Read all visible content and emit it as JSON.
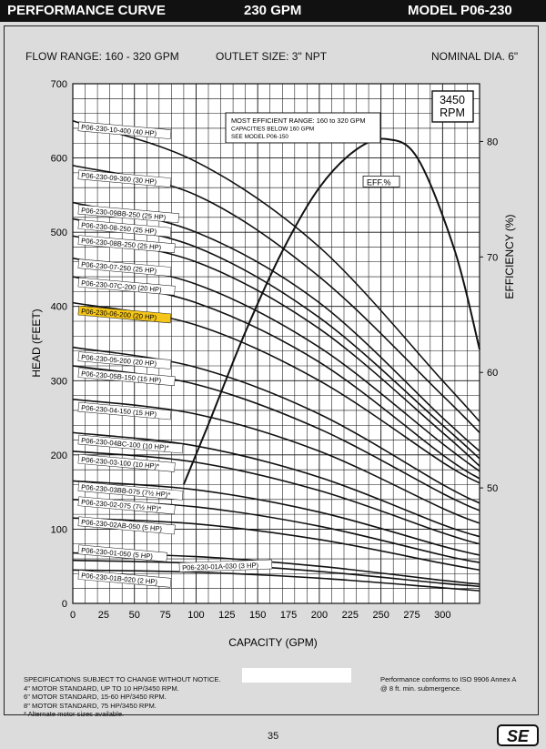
{
  "header": {
    "left": "PERFORMANCE CURVE",
    "center": "230 GPM",
    "right": "MODEL  P06-230"
  },
  "specs": {
    "flow_range": "FLOW RANGE: 160 - 320 GPM",
    "outlet": "OUTLET SIZE: 3\" NPT",
    "nominal": "NOMINAL DIA. 6\""
  },
  "footer": {
    "left": "SPECIFICATIONS SUBJECT TO CHANGE WITHOUT NOTICE.\n4\" MOTOR STANDARD, UP TO 10 HP/3450 RPM.\n6\" MOTOR STANDARD, 15-60 HP/3450 RPM.\n8\" MOTOR STANDARD, 75 HP/3450 RPM.\n* Alternate motor sizes available.",
    "right": "Performance conforms to ISO 9906 Annex A\n@ 8 ft. min. submergence.",
    "page": "35",
    "logo": "SE"
  },
  "chart_data": {
    "type": "line",
    "xlabel": "CAPACITY (GPM)",
    "ylabel": "HEAD (FEET)",
    "y2label": "EFFICIENCY (%)",
    "xlim": [
      0,
      330
    ],
    "ylim": [
      0,
      700
    ],
    "y2lim": [
      40,
      85
    ],
    "xticks": [
      0,
      25,
      50,
      75,
      100,
      125,
      150,
      175,
      200,
      225,
      250,
      275,
      300
    ],
    "yticks": [
      0,
      100,
      200,
      300,
      400,
      500,
      600,
      700
    ],
    "y2ticks": [
      50,
      60,
      70,
      80
    ],
    "grid": true,
    "rpm": "3450\nRPM",
    "note": [
      "MOST EFFICIENT RANGE: 160 to 320 GPM",
      "CAPACITIES BELOW 160 GPM",
      "SEE  MODEL P06-150"
    ],
    "highlight": "P06-230-06-200 (20 HP)",
    "efficiency": {
      "name": "EFF.%",
      "x": [
        90,
        110,
        140,
        170,
        200,
        230,
        255,
        280,
        310,
        330
      ],
      "y": [
        50.3,
        55.5,
        63.5,
        70.5,
        76,
        79.3,
        80.2,
        78.5,
        70.5,
        62
      ]
    },
    "series": [
      {
        "name": "P06-230-10-400 (40 HP)",
        "x": [
          0,
          100,
          200,
          300,
          330
        ],
        "y": [
          650,
          595,
          480,
          300,
          245
        ],
        "label_y": 640
      },
      {
        "name": "P06-230-09-300 (30 HP)",
        "x": [
          0,
          100,
          200,
          300,
          330
        ],
        "y": [
          590,
          550,
          440,
          280,
          230
        ],
        "label_y": 575
      },
      {
        "name": "P06-230-09BB-250 (25 HP)",
        "x": [
          0,
          100,
          200,
          300,
          330
        ],
        "y": [
          540,
          500,
          405,
          250,
          205
        ],
        "label_y": 528
      },
      {
        "name": "P06-230-08-250 (25 HP)",
        "x": [
          0,
          100,
          200,
          300,
          330
        ],
        "y": [
          518,
          480,
          385,
          240,
          195
        ],
        "label_y": 508
      },
      {
        "name": "P06-230-08B-250 (25 HP)",
        "x": [
          0,
          100,
          200,
          300,
          330
        ],
        "y": [
          495,
          460,
          370,
          230,
          185
        ],
        "label_y": 487
      },
      {
        "name": "P06-230-07-250 (25 HP)",
        "x": [
          0,
          100,
          200,
          300,
          330
        ],
        "y": [
          465,
          430,
          345,
          215,
          178
        ],
        "label_y": 455
      },
      {
        "name": "P06-230-07C-200 (20 HP)",
        "x": [
          0,
          100,
          200,
          300,
          330
        ],
        "y": [
          440,
          405,
          325,
          200,
          168
        ],
        "label_y": 430
      },
      {
        "name": "P06-230-06-200 (20 HP)",
        "x": [
          0,
          100,
          200,
          300,
          330
        ],
        "y": [
          405,
          375,
          300,
          190,
          162
        ],
        "label_y": 392
      },
      {
        "name": "P06-230-05-200 (20 HP)",
        "x": [
          0,
          100,
          200,
          300,
          330
        ],
        "y": [
          345,
          318,
          255,
          160,
          135
        ],
        "label_y": 330
      },
      {
        "name": "P06-230-05B-150 (15 HP)",
        "x": [
          0,
          100,
          200,
          300,
          330
        ],
        "y": [
          320,
          295,
          235,
          148,
          125
        ],
        "label_y": 308
      },
      {
        "name": "P06-230-04-150 (15 HP)",
        "x": [
          0,
          100,
          200,
          300,
          330
        ],
        "y": [
          275,
          255,
          205,
          128,
          108
        ],
        "label_y": 262
      },
      {
        "name": "P06-230-04BC-100 (10 HP)*",
        "x": [
          0,
          100,
          200,
          300,
          330
        ],
        "y": [
          230,
          212,
          170,
          106,
          90
        ],
        "label_y": 218
      },
      {
        "name": "P06-230-03-100 (10 HP)*",
        "x": [
          0,
          100,
          200,
          300,
          330
        ],
        "y": [
          205,
          190,
          152,
          95,
          80
        ],
        "label_y": 192
      },
      {
        "name": "P06-230-03BB-075 (7½ HP)*",
        "x": [
          0,
          100,
          200,
          300,
          330
        ],
        "y": [
          165,
          153,
          123,
          77,
          65
        ],
        "label_y": 155
      },
      {
        "name": "P06-230-02-075 (7½ HP)*",
        "x": [
          0,
          100,
          200,
          300,
          330
        ],
        "y": [
          140,
          130,
          104,
          65,
          55
        ],
        "label_y": 135
      },
      {
        "name": "P06-230-02AB-050 (5 HP)",
        "x": [
          0,
          100,
          200,
          300,
          330
        ],
        "y": [
          115,
          107,
          86,
          54,
          45
        ],
        "label_y": 108
      },
      {
        "name": "P06-230-01-050 (5 HP)",
        "x": [
          0,
          100,
          200,
          300,
          330
        ],
        "y": [
          68,
          63,
          50,
          31,
          26
        ],
        "label_y": 70
      },
      {
        "name": "P06-230-01A-030 (3 HP)",
        "x": [
          0,
          100,
          200,
          300,
          330
        ],
        "y": [
          58,
          54,
          43,
          27,
          23
        ],
        "label_y": 46
      },
      {
        "name": "P06-230-01B-020 (2 HP)",
        "x": [
          0,
          100,
          200,
          300,
          330
        ],
        "y": [
          45,
          42,
          34,
          21,
          17
        ],
        "label_y": 36
      }
    ]
  }
}
